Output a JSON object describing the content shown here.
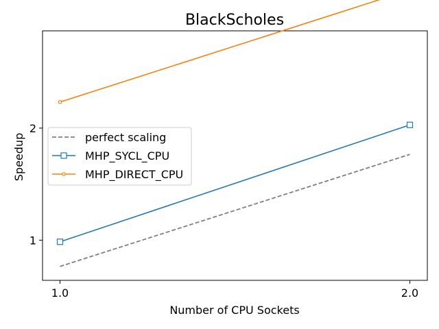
{
  "chart_data": {
    "type": "line",
    "title": "BlackScholes",
    "xlabel": "Number of CPU Sockets",
    "ylabel": "Speedup",
    "x": [
      1.0,
      2.0
    ],
    "x_ticks": [
      "1.0",
      "2.0"
    ],
    "y_ticks": [
      1,
      2
    ],
    "y_tick_labels": [
      "1",
      "2"
    ],
    "yscale": "log",
    "xlim": [
      0.95,
      2.05
    ],
    "ylim": [
      0.78,
      3.65
    ],
    "grid": false,
    "legend_position": "center-left",
    "series": [
      {
        "name": "perfect scaling",
        "values": [
          0.85,
          1.7
        ],
        "color": "#7f7f7f",
        "linestyle": "dashed",
        "marker": "none"
      },
      {
        "name": "MHP_SYCL_CPU",
        "values": [
          0.99,
          2.04
        ],
        "color": "#1f77b4",
        "linestyle": "solid",
        "marker": "square"
      },
      {
        "name": "MHP_DIRECT_CPU",
        "values": [
          2.35,
          4.7
        ],
        "color": "#ff7f0e",
        "linestyle": "solid",
        "marker": "circle"
      }
    ]
  }
}
